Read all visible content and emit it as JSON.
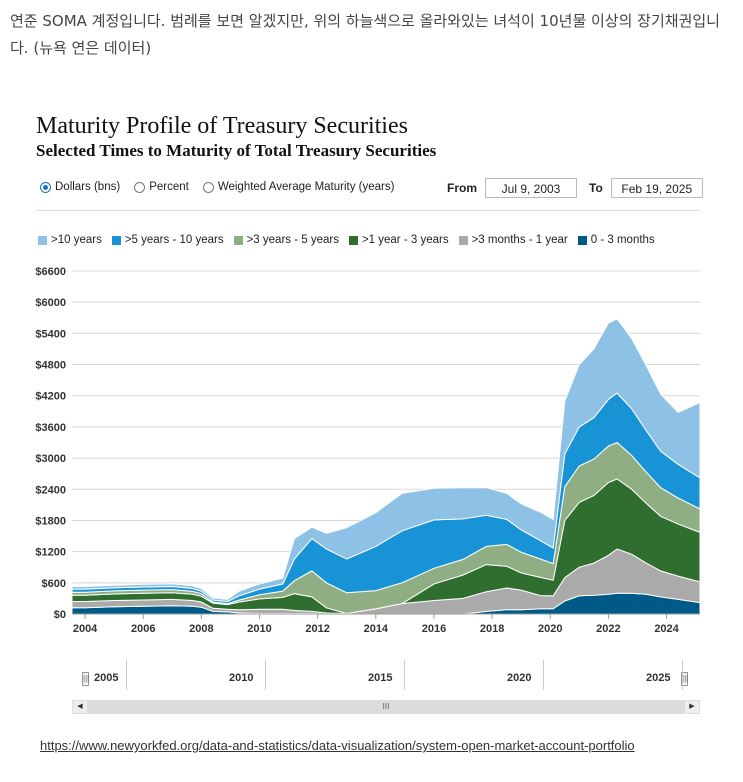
{
  "intro_text": "연준 SOMA 계정입니다. 범례를 보면 알겠지만, 위의 하늘색으로 올라와있는 녀석이 10년물 이상의 장기채권입니다. (뉴욕 연은 데이터)",
  "controls": {
    "radio_dollars": "Dollars (bns)",
    "radio_percent": "Percent",
    "radio_wam": "Weighted Average Maturity (years)",
    "selected": "Dollars (bns)",
    "from_label": "From",
    "from_value": "Jul 9, 2003",
    "to_label": "To",
    "to_value": "Feb 19, 2025"
  },
  "navigator": {
    "labels": [
      "2005",
      "2010",
      "2015",
      "2020",
      "2025"
    ]
  },
  "source_link": "https://www.newyorkfed.org/data-and-statistics/data-visualization/system-open-market-account-portfolio",
  "chart_data": {
    "type": "area",
    "stacked": true,
    "title": "Maturity Profile of Treasury Securities",
    "subtitle": "Selected Times to Maturity of Total Treasury Securities",
    "ylim": [
      0,
      6600
    ],
    "yticks": [
      "$0",
      "$600",
      "$1200",
      "$1800",
      "$2400",
      "$3000",
      "$3600",
      "$4200",
      "$4800",
      "$5400",
      "$6000",
      "$6600"
    ],
    "xticks": [
      "2004",
      "2006",
      "2008",
      "2010",
      "2012",
      "2014",
      "2016",
      "2018",
      "2020",
      "2022",
      "2024"
    ],
    "xlim": [
      2003.55,
      2025.15
    ],
    "grid": "horizontal",
    "legend_position": "top",
    "x": [
      2003.55,
      2004.0,
      2005.0,
      2006.0,
      2007.0,
      2007.7,
      2008.0,
      2008.4,
      2008.9,
      2009.3,
      2010.0,
      2010.8,
      2011.2,
      2011.8,
      2012.3,
      2013.0,
      2014.0,
      2014.9,
      2016.0,
      2017.0,
      2017.8,
      2018.5,
      2019.0,
      2019.7,
      2020.1,
      2020.5,
      2021.0,
      2021.5,
      2022.0,
      2022.3,
      2022.8,
      2023.3,
      2023.8,
      2024.4,
      2025.15
    ],
    "series": [
      {
        "name": "0 - 3 months",
        "color": "#005a87",
        "values": [
          120,
          120,
          140,
          150,
          160,
          150,
          130,
          50,
          40,
          20,
          10,
          10,
          10,
          10,
          0,
          0,
          0,
          0,
          0,
          0,
          50,
          80,
          80,
          100,
          100,
          250,
          350,
          360,
          380,
          400,
          400,
          380,
          330,
          280,
          220
        ]
      },
      {
        "name": ">3 months - 1 year",
        "color": "#aaaaaa",
        "values": [
          120,
          120,
          120,
          120,
          120,
          110,
          100,
          60,
          50,
          60,
          80,
          80,
          60,
          40,
          20,
          10,
          100,
          200,
          260,
          300,
          380,
          420,
          380,
          250,
          250,
          450,
          550,
          620,
          750,
          850,
          750,
          600,
          500,
          450,
          400
        ]
      },
      {
        "name": ">1 year - 3 years",
        "color": "#2f6e2f",
        "values": [
          120,
          120,
          125,
          130,
          130,
          120,
          110,
          100,
          90,
          150,
          200,
          230,
          320,
          280,
          100,
          0,
          0,
          0,
          320,
          450,
          520,
          420,
          330,
          350,
          300,
          1100,
          1250,
          1300,
          1400,
          1350,
          1250,
          1150,
          1050,
          1000,
          950
        ]
      },
      {
        "name": ">3 years - 5 years",
        "color": "#8fae84",
        "values": [
          60,
          60,
          60,
          60,
          60,
          55,
          50,
          20,
          20,
          40,
          80,
          120,
          250,
          500,
          480,
          400,
          350,
          400,
          300,
          300,
          350,
          420,
          400,
          350,
          320,
          650,
          700,
          700,
          700,
          700,
          650,
          600,
          550,
          500,
          450
        ]
      },
      {
        "name": ">5 years - 10 years",
        "color": "#1894d6",
        "values": [
          60,
          60,
          60,
          60,
          60,
          55,
          50,
          40,
          40,
          80,
          110,
          140,
          420,
          620,
          650,
          650,
          850,
          1000,
          930,
          780,
          600,
          480,
          430,
          350,
          300,
          630,
          750,
          800,
          900,
          950,
          900,
          800,
          700,
          650,
          600
        ]
      },
      {
        "name": ">10 years",
        "color": "#8ec1e6",
        "values": [
          50,
          50,
          50,
          50,
          50,
          50,
          50,
          40,
          40,
          90,
          100,
          110,
          390,
          220,
          300,
          600,
          650,
          720,
          610,
          600,
          530,
          500,
          500,
          550,
          550,
          1020,
          1200,
          1320,
          1470,
          1430,
          1350,
          1250,
          1100,
          1000,
          1450
        ]
      }
    ]
  }
}
